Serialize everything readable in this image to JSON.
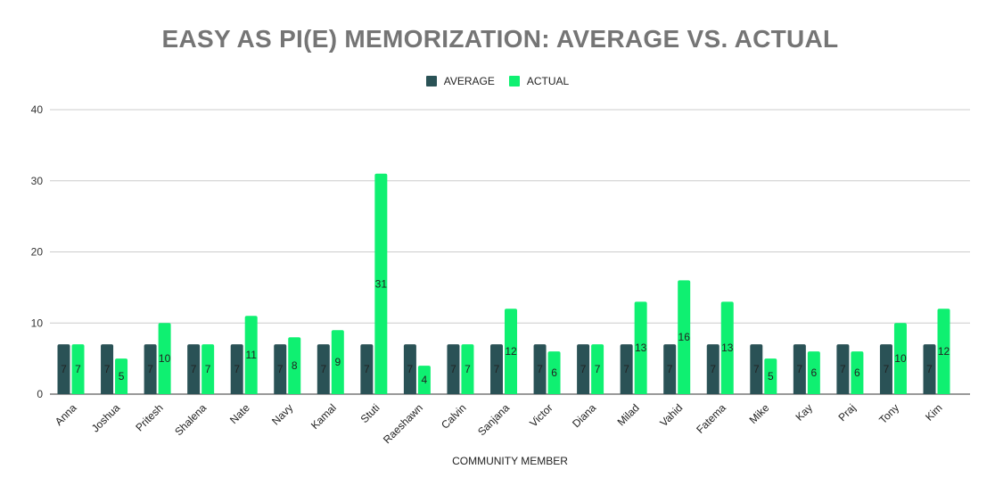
{
  "chart_data": {
    "type": "bar",
    "title": "EASY AS PI(E) MEMORIZATION: AVERAGE VS. ACTUAL",
    "xlabel": "COMMUNITY MEMBER",
    "ylabel": "",
    "ylim": [
      0,
      40
    ],
    "yticks": [
      0,
      10,
      20,
      30,
      40
    ],
    "grid": true,
    "legend_position": "top",
    "categories": [
      "Anna",
      "Joshua",
      "Pritesh",
      "Shalena",
      "Nate",
      "Navy",
      "Kamal",
      "Stuti",
      "Raeshawn",
      "Calvin",
      "Sanjana",
      "Victor",
      "Diana",
      "Milad",
      "Vahid",
      "Fatema",
      "Mike",
      "Kay",
      "Praj",
      "Tony",
      "Kim"
    ],
    "series": [
      {
        "name": "AVERAGE",
        "color": "#2a5256",
        "values": [
          7,
          7,
          7,
          7,
          7,
          7,
          7,
          7,
          7,
          7,
          7,
          7,
          7,
          7,
          7,
          7,
          7,
          7,
          7,
          7,
          7
        ]
      },
      {
        "name": "ACTUAL",
        "color": "#0ff071",
        "values": [
          7,
          5,
          10,
          7,
          11,
          8,
          9,
          31,
          4,
          7,
          12,
          6,
          7,
          13,
          16,
          13,
          5,
          6,
          6,
          10,
          12
        ]
      }
    ]
  }
}
